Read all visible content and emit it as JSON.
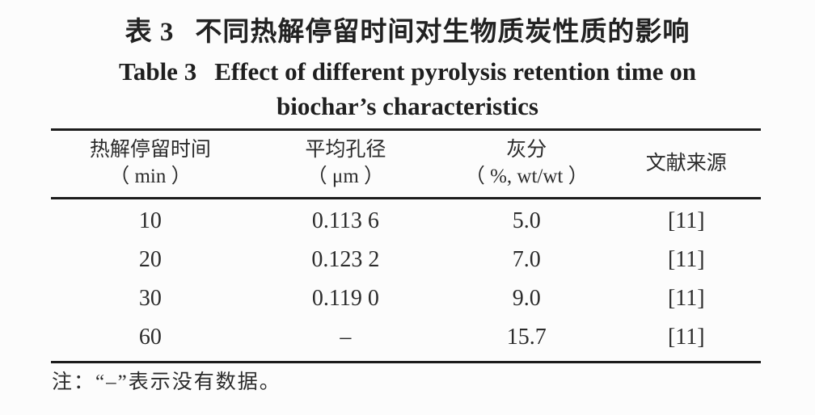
{
  "title": {
    "zh_label": "表 3",
    "zh_text": "不同热解停留时间对生物质炭性质的影响",
    "en_label": "Table 3",
    "en_line1": "Effect of different pyrolysis retention time on",
    "en_line2": "biochar’s characteristics"
  },
  "chart_data": {
    "type": "table",
    "title": "表3 不同热解停留时间对生物质炭性质的影响 / Table 3 Effect of different pyrolysis retention time on biochar’s characteristics",
    "columns": [
      {
        "name": "热解停留时间",
        "unit": "（ min ）"
      },
      {
        "name": "平均孔径",
        "unit": "（ μm ）"
      },
      {
        "name": "灰分",
        "unit": "（ %, wt/wt ）"
      },
      {
        "name": "文献来源",
        "unit": ""
      }
    ],
    "rows": [
      [
        "10",
        "0.113 6",
        "5.0",
        "[11]"
      ],
      [
        "20",
        "0.123 2",
        "7.0",
        "[11]"
      ],
      [
        "30",
        "0.119 0",
        "9.0",
        "[11]"
      ],
      [
        "60",
        "–",
        "15.7",
        "[11]"
      ]
    ]
  },
  "footnote": "注：“–”表示没有数据。"
}
